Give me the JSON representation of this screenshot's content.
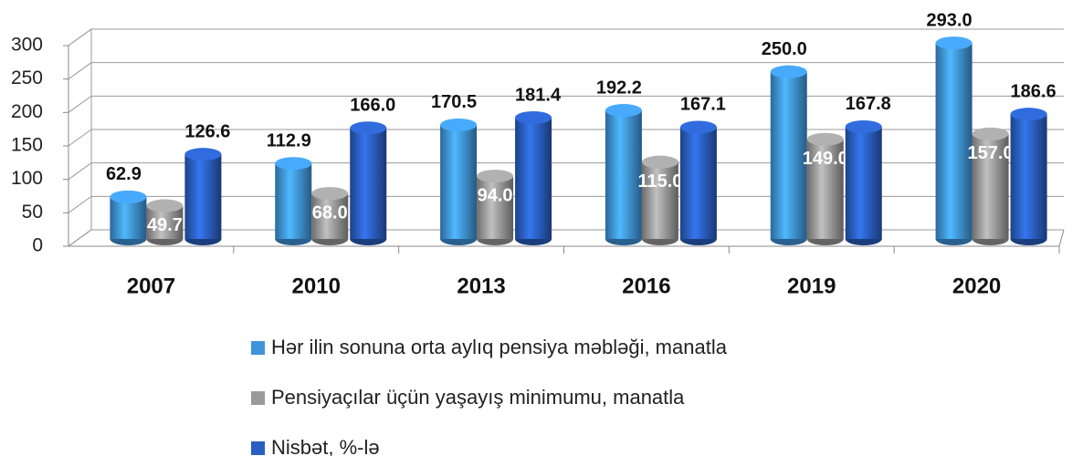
{
  "chart_data": {
    "type": "bar3d",
    "categories": [
      "2007",
      "2010",
      "2013",
      "2016",
      "2019",
      "2020"
    ],
    "series": [
      {
        "name": "Hər ilin sonuna orta aylıq pensiya məbləği, manatla",
        "color": "#3f94dc",
        "values": [
          62.9,
          112.9,
          170.5,
          192.2,
          250.0,
          293.0
        ],
        "value_labels": [
          "62.9",
          "112.9",
          "170.5",
          "192.2",
          "250.0",
          "293.0"
        ]
      },
      {
        "name": "Pensiyaçılar üçün yaşayış minimumu, manatla",
        "color": "#9a9a9a",
        "values": [
          49.7,
          68.0,
          94.0,
          115.0,
          149.0,
          157.0
        ],
        "value_labels": [
          "49.7",
          "68.0",
          "94.0",
          "115.0",
          "149.0",
          "157.0"
        ]
      },
      {
        "name": "Nisbət, %-lə",
        "color": "#2a5ec0",
        "values": [
          126.6,
          166.0,
          181.4,
          167.1,
          167.8,
          186.6
        ],
        "value_labels": [
          "126.6",
          "166.0",
          "181.4",
          "167.1",
          "167.8",
          "186.6"
        ]
      }
    ],
    "ylim": [
      0,
      300
    ],
    "yticks": [
      0,
      50,
      100,
      150,
      200,
      250,
      300
    ],
    "grid": true
  }
}
